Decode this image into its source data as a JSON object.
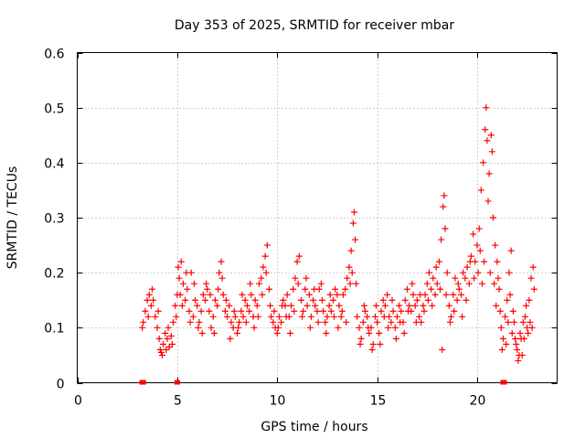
{
  "chart_data": {
    "type": "scatter",
    "title": "Day 353 of 2025, SRMTID for receiver mbar",
    "xlabel": "GPS time / hours",
    "ylabel": "SRMTID / TECUs",
    "xlim": [
      0,
      24
    ],
    "ylim": [
      0,
      0.6
    ],
    "xticks": [
      0,
      5,
      10,
      15,
      20
    ],
    "xtick_labels": [
      "0",
      "5",
      "10",
      "15",
      "20"
    ],
    "yticks": [
      0,
      0.1,
      0.2,
      0.3,
      0.4,
      0.5,
      0.6
    ],
    "ytick_labels": [
      "0",
      "0.1",
      "0.2",
      "0.3",
      "0.4",
      "0.5",
      "0.6"
    ],
    "grid": true,
    "marker": "plus",
    "color": "#ff0000",
    "series": [
      {
        "name": "SRMTID",
        "points": [
          [
            3.3,
            0.11
          ],
          [
            3.4,
            0.13
          ],
          [
            3.5,
            0.15
          ],
          [
            3.6,
            0.16
          ],
          [
            3.7,
            0.14
          ],
          [
            3.8,
            0.15
          ],
          [
            3.9,
            0.12
          ],
          [
            4.0,
            0.1
          ],
          [
            4.1,
            0.08
          ],
          [
            4.15,
            0.06
          ],
          [
            4.2,
            0.055
          ],
          [
            4.3,
            0.07
          ],
          [
            4.4,
            0.09
          ],
          [
            4.5,
            0.08
          ],
          [
            4.6,
            0.065
          ],
          [
            4.7,
            0.085
          ],
          [
            4.8,
            0.11
          ],
          [
            4.9,
            0.14
          ],
          [
            5.0,
            0.16
          ],
          [
            5.1,
            0.19
          ],
          [
            5.2,
            0.22
          ],
          [
            5.3,
            0.18
          ],
          [
            5.4,
            0.15
          ],
          [
            5.5,
            0.17
          ],
          [
            5.6,
            0.13
          ],
          [
            5.7,
            0.2
          ],
          [
            5.8,
            0.12
          ],
          [
            5.9,
            0.15
          ],
          [
            6.0,
            0.14
          ],
          [
            6.1,
            0.11
          ],
          [
            6.2,
            0.13
          ],
          [
            6.3,
            0.16
          ],
          [
            6.4,
            0.15
          ],
          [
            6.5,
            0.17
          ],
          [
            6.6,
            0.13
          ],
          [
            6.7,
            0.1
          ],
          [
            6.8,
            0.12
          ],
          [
            6.9,
            0.15
          ],
          [
            7.0,
            0.14
          ],
          [
            7.1,
            0.2
          ],
          [
            7.2,
            0.22
          ],
          [
            7.3,
            0.16
          ],
          [
            7.4,
            0.13
          ],
          [
            7.5,
            0.12
          ],
          [
            7.6,
            0.14
          ],
          [
            7.7,
            0.11
          ],
          [
            7.8,
            0.1
          ],
          [
            7.9,
            0.12
          ],
          [
            8.0,
            0.09
          ],
          [
            8.1,
            0.11
          ],
          [
            8.2,
            0.13
          ],
          [
            8.3,
            0.12
          ],
          [
            8.4,
            0.15
          ],
          [
            8.5,
            0.14
          ],
          [
            8.6,
            0.13
          ],
          [
            8.7,
            0.16
          ],
          [
            8.8,
            0.12
          ],
          [
            8.9,
            0.15
          ],
          [
            9.0,
            0.14
          ],
          [
            9.1,
            0.18
          ],
          [
            9.2,
            0.19
          ],
          [
            9.3,
            0.21
          ],
          [
            9.4,
            0.23
          ],
          [
            9.5,
            0.25
          ],
          [
            9.6,
            0.17
          ],
          [
            9.7,
            0.12
          ],
          [
            9.8,
            0.11
          ],
          [
            9.9,
            0.1
          ],
          [
            10.0,
            0.09
          ],
          [
            10.1,
            0.12
          ],
          [
            10.2,
            0.11
          ],
          [
            10.3,
            0.15
          ],
          [
            10.4,
            0.14
          ],
          [
            10.5,
            0.16
          ],
          [
            10.6,
            0.12
          ],
          [
            10.7,
            0.14
          ],
          [
            10.8,
            0.17
          ],
          [
            10.9,
            0.19
          ],
          [
            11.0,
            0.22
          ],
          [
            11.1,
            0.23
          ],
          [
            11.2,
            0.15
          ],
          [
            11.3,
            0.13
          ],
          [
            11.4,
            0.17
          ],
          [
            11.5,
            0.14
          ],
          [
            11.6,
            0.16
          ],
          [
            11.7,
            0.12
          ],
          [
            11.8,
            0.15
          ],
          [
            11.9,
            0.14
          ],
          [
            12.0,
            0.13
          ],
          [
            12.1,
            0.17
          ],
          [
            12.2,
            0.18
          ],
          [
            12.3,
            0.13
          ],
          [
            12.4,
            0.11
          ],
          [
            12.5,
            0.12
          ],
          [
            12.6,
            0.14
          ],
          [
            12.7,
            0.13
          ],
          [
            12.8,
            0.15
          ],
          [
            12.9,
            0.17
          ],
          [
            13.0,
            0.16
          ],
          [
            13.1,
            0.14
          ],
          [
            13.2,
            0.12
          ],
          [
            13.3,
            0.16
          ],
          [
            13.4,
            0.17
          ],
          [
            13.5,
            0.19
          ],
          [
            13.6,
            0.21
          ],
          [
            13.7,
            0.24
          ],
          [
            13.8,
            0.29
          ],
          [
            13.85,
            0.31
          ],
          [
            13.9,
            0.26
          ],
          [
            14.0,
            0.12
          ],
          [
            14.1,
            0.1
          ],
          [
            14.2,
            0.08
          ],
          [
            14.3,
            0.11
          ],
          [
            14.4,
            0.13
          ],
          [
            14.5,
            0.12
          ],
          [
            14.6,
            0.09
          ],
          [
            14.7,
            0.1
          ],
          [
            14.8,
            0.07
          ],
          [
            14.9,
            0.12
          ],
          [
            15.0,
            0.11
          ],
          [
            15.1,
            0.09
          ],
          [
            15.2,
            0.13
          ],
          [
            15.3,
            0.15
          ],
          [
            15.4,
            0.14
          ],
          [
            15.5,
            0.16
          ],
          [
            15.6,
            0.12
          ],
          [
            15.7,
            0.11
          ],
          [
            15.8,
            0.13
          ],
          [
            15.9,
            0.1
          ],
          [
            16.0,
            0.12
          ],
          [
            16.1,
            0.14
          ],
          [
            16.2,
            0.13
          ],
          [
            16.3,
            0.11
          ],
          [
            16.4,
            0.15
          ],
          [
            16.5,
            0.17
          ],
          [
            16.6,
            0.14
          ],
          [
            16.7,
            0.13
          ],
          [
            16.8,
            0.16
          ],
          [
            16.9,
            0.14
          ],
          [
            17.0,
            0.15
          ],
          [
            17.1,
            0.12
          ],
          [
            17.2,
            0.11
          ],
          [
            17.3,
            0.14
          ],
          [
            17.4,
            0.16
          ],
          [
            17.5,
            0.18
          ],
          [
            17.6,
            0.2
          ],
          [
            17.7,
            0.17
          ],
          [
            17.8,
            0.19
          ],
          [
            17.9,
            0.16
          ],
          [
            18.0,
            0.18
          ],
          [
            18.1,
            0.22
          ],
          [
            18.2,
            0.26
          ],
          [
            18.3,
            0.32
          ],
          [
            18.35,
            0.34
          ],
          [
            18.4,
            0.28
          ],
          [
            18.5,
            0.2
          ],
          [
            18.6,
            0.14
          ],
          [
            18.7,
            0.12
          ],
          [
            18.8,
            0.16
          ],
          [
            18.9,
            0.19
          ],
          [
            19.0,
            0.15
          ],
          [
            19.1,
            0.17
          ],
          [
            19.2,
            0.16
          ],
          [
            19.3,
            0.2
          ],
          [
            19.4,
            0.19
          ],
          [
            19.5,
            0.21
          ],
          [
            19.6,
            0.18
          ],
          [
            19.7,
            0.23
          ],
          [
            19.8,
            0.27
          ],
          [
            19.9,
            0.22
          ],
          [
            20.0,
            0.25
          ],
          [
            20.1,
            0.28
          ],
          [
            20.2,
            0.35
          ],
          [
            20.3,
            0.4
          ],
          [
            20.4,
            0.46
          ],
          [
            20.45,
            0.5
          ],
          [
            20.5,
            0.44
          ],
          [
            20.6,
            0.38
          ],
          [
            20.7,
            0.45
          ],
          [
            20.8,
            0.3
          ],
          [
            20.9,
            0.25
          ],
          [
            21.0,
            0.22
          ],
          [
            21.1,
            0.17
          ],
          [
            21.2,
            0.1
          ],
          [
            21.3,
            0.08
          ],
          [
            21.4,
            0.12
          ],
          [
            21.5,
            0.15
          ],
          [
            21.6,
            0.2
          ],
          [
            21.7,
            0.24
          ],
          [
            21.8,
            0.13
          ],
          [
            21.9,
            0.08
          ],
          [
            22.0,
            0.06
          ],
          [
            22.05,
            0.04
          ],
          [
            22.1,
            0.05
          ],
          [
            22.2,
            0.08
          ],
          [
            22.3,
            0.11
          ],
          [
            22.4,
            0.12
          ],
          [
            22.5,
            0.1
          ],
          [
            22.6,
            0.15
          ],
          [
            22.7,
            0.19
          ],
          [
            22.8,
            0.21
          ],
          [
            3.25,
            0.1
          ],
          [
            3.55,
            0.12
          ],
          [
            3.75,
            0.17
          ],
          [
            4.05,
            0.13
          ],
          [
            4.25,
            0.05
          ],
          [
            4.45,
            0.06
          ],
          [
            4.55,
            0.1
          ],
          [
            4.75,
            0.07
          ],
          [
            4.95,
            0.12
          ],
          [
            5.05,
            0.21
          ],
          [
            5.15,
            0.16
          ],
          [
            5.25,
            0.14
          ],
          [
            5.45,
            0.2
          ],
          [
            5.65,
            0.11
          ],
          [
            5.85,
            0.18
          ],
          [
            6.05,
            0.1
          ],
          [
            6.25,
            0.09
          ],
          [
            6.45,
            0.18
          ],
          [
            6.65,
            0.16
          ],
          [
            6.85,
            0.09
          ],
          [
            7.05,
            0.17
          ],
          [
            7.25,
            0.19
          ],
          [
            7.45,
            0.15
          ],
          [
            7.65,
            0.08
          ],
          [
            7.85,
            0.13
          ],
          [
            8.05,
            0.1
          ],
          [
            8.25,
            0.16
          ],
          [
            8.45,
            0.11
          ],
          [
            8.65,
            0.18
          ],
          [
            8.85,
            0.1
          ],
          [
            9.05,
            0.12
          ],
          [
            9.25,
            0.16
          ],
          [
            9.45,
            0.2
          ],
          [
            9.65,
            0.14
          ],
          [
            9.85,
            0.13
          ],
          [
            10.05,
            0.1
          ],
          [
            10.25,
            0.14
          ],
          [
            10.45,
            0.12
          ],
          [
            10.65,
            0.09
          ],
          [
            10.85,
            0.13
          ],
          [
            11.05,
            0.18
          ],
          [
            11.25,
            0.12
          ],
          [
            11.45,
            0.19
          ],
          [
            11.65,
            0.1
          ],
          [
            11.85,
            0.17
          ],
          [
            12.05,
            0.11
          ],
          [
            12.25,
            0.15
          ],
          [
            12.45,
            0.09
          ],
          [
            12.65,
            0.16
          ],
          [
            12.85,
            0.12
          ],
          [
            13.05,
            0.1
          ],
          [
            13.25,
            0.13
          ],
          [
            13.45,
            0.11
          ],
          [
            13.65,
            0.18
          ],
          [
            13.75,
            0.2
          ],
          [
            13.95,
            0.18
          ],
          [
            14.15,
            0.07
          ],
          [
            14.35,
            0.14
          ],
          [
            14.55,
            0.1
          ],
          [
            14.75,
            0.06
          ],
          [
            14.95,
            0.14
          ],
          [
            15.15,
            0.07
          ],
          [
            15.35,
            0.12
          ],
          [
            15.55,
            0.1
          ],
          [
            15.75,
            0.15
          ],
          [
            15.95,
            0.08
          ],
          [
            16.15,
            0.11
          ],
          [
            16.35,
            0.09
          ],
          [
            16.55,
            0.13
          ],
          [
            16.75,
            0.18
          ],
          [
            16.95,
            0.11
          ],
          [
            17.15,
            0.16
          ],
          [
            17.35,
            0.13
          ],
          [
            17.55,
            0.15
          ],
          [
            17.75,
            0.14
          ],
          [
            17.95,
            0.21
          ],
          [
            18.15,
            0.17
          ],
          [
            18.25,
            0.06
          ],
          [
            18.45,
            0.16
          ],
          [
            18.65,
            0.11
          ],
          [
            18.85,
            0.13
          ],
          [
            19.05,
            0.18
          ],
          [
            19.25,
            0.12
          ],
          [
            19.45,
            0.15
          ],
          [
            19.65,
            0.22
          ],
          [
            19.85,
            0.19
          ],
          [
            20.05,
            0.2
          ],
          [
            20.15,
            0.24
          ],
          [
            20.25,
            0.18
          ],
          [
            20.35,
            0.22
          ],
          [
            20.55,
            0.33
          ],
          [
            20.65,
            0.2
          ],
          [
            20.75,
            0.42
          ],
          [
            20.85,
            0.18
          ],
          [
            20.95,
            0.14
          ],
          [
            21.05,
            0.19
          ],
          [
            21.15,
            0.13
          ],
          [
            21.25,
            0.06
          ],
          [
            21.45,
            0.07
          ],
          [
            21.55,
            0.11
          ],
          [
            21.65,
            0.16
          ],
          [
            21.75,
            0.09
          ],
          [
            21.85,
            0.11
          ],
          [
            21.95,
            0.07
          ],
          [
            22.15,
            0.09
          ],
          [
            22.25,
            0.05
          ],
          [
            22.35,
            0.08
          ],
          [
            22.45,
            0.14
          ],
          [
            22.55,
            0.09
          ],
          [
            22.65,
            0.11
          ],
          [
            22.75,
            0.1
          ],
          [
            22.85,
            0.17
          ]
        ]
      }
    ],
    "zero_points": [
      [
        3.25,
        0
      ],
      [
        3.3,
        0
      ],
      [
        5.0,
        0
      ],
      [
        21.3,
        0
      ],
      [
        21.35,
        0
      ]
    ]
  }
}
